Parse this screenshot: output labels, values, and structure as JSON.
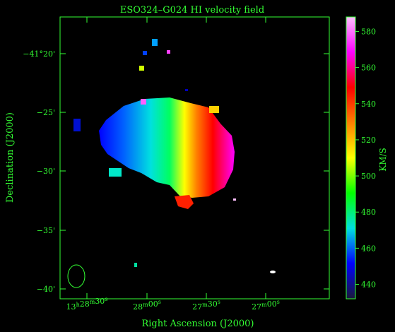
{
  "chart_data": {
    "type": "heatmap",
    "title": "ESO324–G024   HI velocity field",
    "xlabel": "Right Ascension (J2000)",
    "ylabel": "Declination (J2000)",
    "colorbar_label": "KM/S",
    "x_ticks": [
      "13h28m30s",
      "28m00s",
      "27m30s",
      "27m00s"
    ],
    "y_ticks": [
      "−41°20'",
      "−25'",
      "−30'",
      "−35'",
      "−40'"
    ],
    "colorbar_ticks": [
      440,
      460,
      480,
      500,
      520,
      540,
      560,
      580
    ],
    "colorbar_range": [
      432,
      588
    ],
    "colormap": [
      "#1a1a3a",
      "#0000ff",
      "#00e0e0",
      "#00ff00",
      "#ffff00",
      "#ff8000",
      "#ff0000",
      "#ff00ff",
      "#ffc0ff"
    ],
    "axis_color": "#33ff33",
    "background": "#000000",
    "beam": "ellipse (lower left)"
  }
}
